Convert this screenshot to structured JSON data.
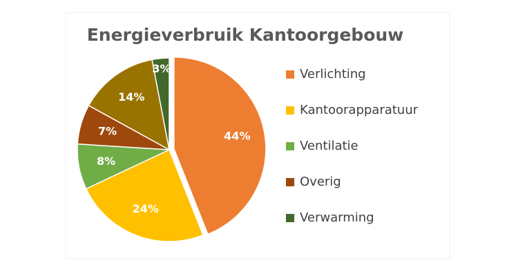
{
  "chart_data": {
    "type": "pie",
    "title": "Energieverbruik Kantoorgebouw",
    "categories": [
      "Verlichting",
      "Kantoorapparatuur",
      "Ventilatie",
      "Overig",
      null,
      "Verwarming"
    ],
    "values": [
      44,
      24,
      8,
      7,
      14,
      3
    ],
    "value_labels": [
      "44%",
      "24%",
      "8%",
      "7%",
      "14%",
      "3%"
    ],
    "colors": [
      "#ED7D31",
      "#FFC000",
      "#70AD47",
      "#9E480E",
      "#997300",
      "#43682B"
    ],
    "legend": "right"
  }
}
